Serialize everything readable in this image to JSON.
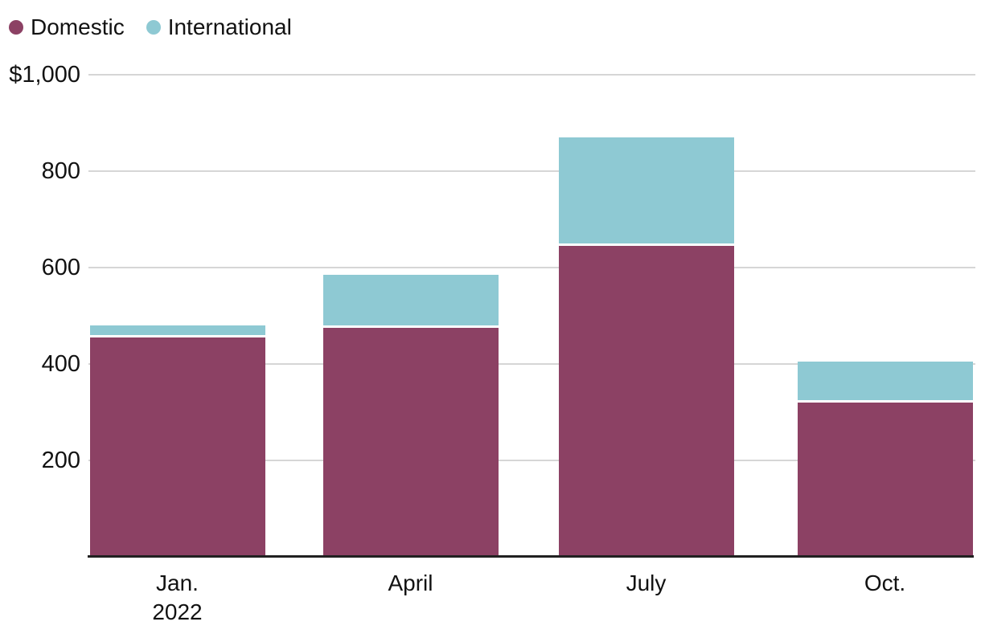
{
  "legend": {
    "items": [
      {
        "label": "Domestic",
        "color": "#8c4164"
      },
      {
        "label": "International",
        "color": "#8ec9d3"
      }
    ]
  },
  "y_axis": {
    "ticks": [
      {
        "value": 200,
        "label": "200"
      },
      {
        "value": 400,
        "label": "400"
      },
      {
        "value": 600,
        "label": "600"
      },
      {
        "value": 800,
        "label": "800"
      },
      {
        "value": 1000,
        "label": "$1,000"
      }
    ]
  },
  "chart_data": {
    "type": "bar",
    "stacked": true,
    "title": "",
    "xlabel": "",
    "ylabel": "",
    "ylim": [
      0,
      1000
    ],
    "y_tick_interval": 200,
    "grid": true,
    "legend_position": "top-left",
    "categories": [
      "Jan.\n2022",
      "April",
      "July",
      "Oct."
    ],
    "series": [
      {
        "name": "Domestic",
        "color": "#8c4164",
        "values": [
          455,
          475,
          645,
          320
        ]
      },
      {
        "name": "International",
        "color": "#8ec9d3",
        "values": [
          25,
          110,
          225,
          85
        ]
      }
    ],
    "totals": [
      480,
      585,
      870,
      405
    ],
    "colors": {
      "domestic": "#8c4164",
      "international": "#8ec9d3",
      "gridline": "#d6d6d6",
      "axis": "#212121",
      "text": "#121212",
      "background": "#ffffff"
    }
  }
}
